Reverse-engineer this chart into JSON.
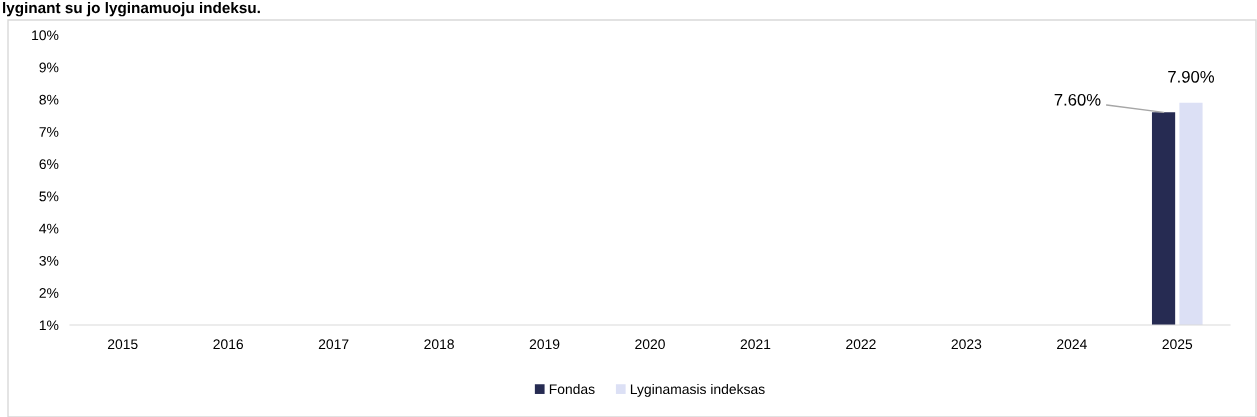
{
  "chart_data": {
    "type": "bar",
    "title": "lyginant su jo lyginamuoju indeksu.",
    "categories": [
      "2015",
      "2016",
      "2017",
      "2018",
      "2019",
      "2020",
      "2021",
      "2022",
      "2023",
      "2024",
      "2025"
    ],
    "series": [
      {
        "name": "Fondas",
        "color": "#262b52",
        "values": [
          null,
          null,
          null,
          null,
          null,
          null,
          null,
          null,
          null,
          null,
          7.6
        ],
        "value_labels": [
          null,
          null,
          null,
          null,
          null,
          null,
          null,
          null,
          null,
          null,
          "7.60%"
        ]
      },
      {
        "name": "Lyginamasis indeksas",
        "color": "#dce0f5",
        "values": [
          null,
          null,
          null,
          null,
          null,
          null,
          null,
          null,
          null,
          null,
          7.9
        ],
        "value_labels": [
          null,
          null,
          null,
          null,
          null,
          null,
          null,
          null,
          null,
          null,
          "7.90%"
        ]
      }
    ],
    "ylim": [
      1,
      10
    ],
    "yticks": [
      {
        "value": 1,
        "label": "1%"
      },
      {
        "value": 2,
        "label": "2%"
      },
      {
        "value": 3,
        "label": "3%"
      },
      {
        "value": 4,
        "label": "4%"
      },
      {
        "value": 5,
        "label": "5%"
      },
      {
        "value": 6,
        "label": "6%"
      },
      {
        "value": 7,
        "label": "7%"
      },
      {
        "value": 8,
        "label": "8%"
      },
      {
        "value": 9,
        "label": "9%"
      },
      {
        "value": 10,
        "label": "10%"
      }
    ],
    "grid": false,
    "legend": "bottom"
  }
}
